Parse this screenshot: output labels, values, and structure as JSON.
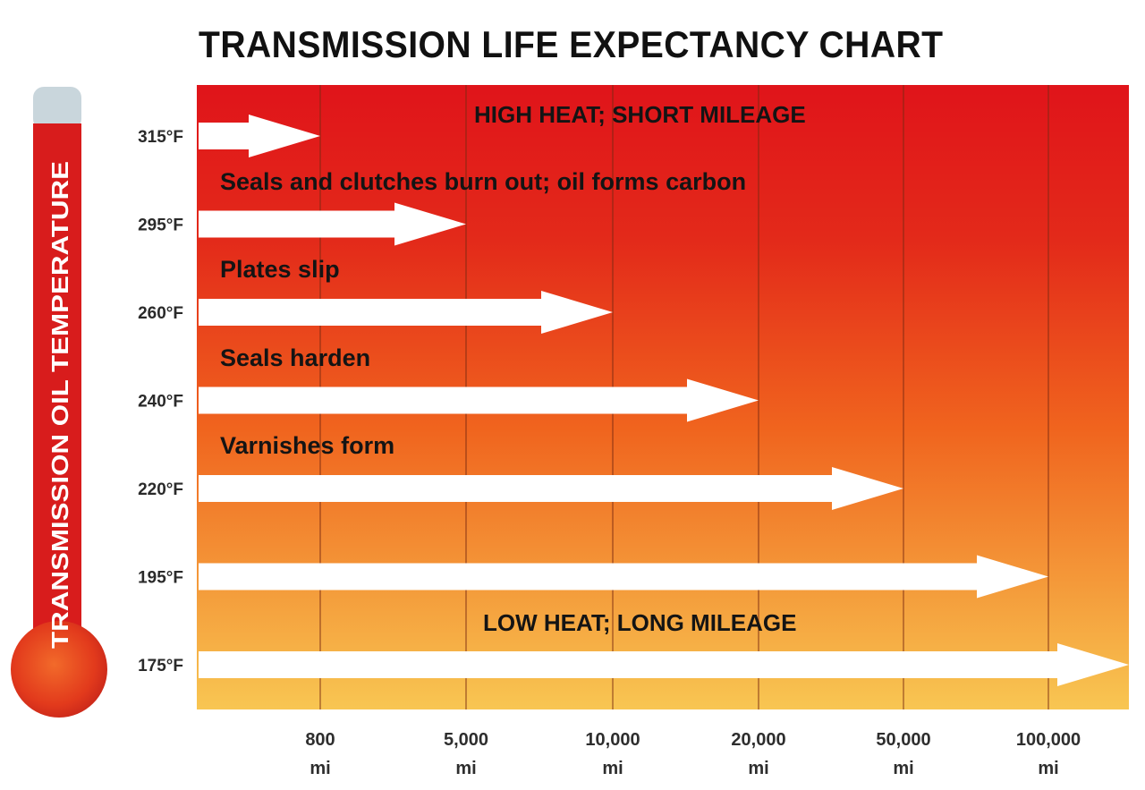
{
  "chart_data": {
    "type": "bar",
    "orientation": "horizontal",
    "title": "TRANSMISSION LIFE EXPECTANCY CHART",
    "ylabel": "TRANSMISSION OIL TEMPERATURE",
    "xlabel": "",
    "categories": [
      "315°F",
      "295°F",
      "260°F",
      "240°F",
      "220°F",
      "195°F",
      "175°F"
    ],
    "values_mi": [
      800,
      5000,
      10000,
      20000,
      50000,
      100000,
      100001
    ],
    "x_ticks": [
      {
        "value": "800",
        "unit": "mi"
      },
      {
        "value": "5,000",
        "unit": "mi"
      },
      {
        "value": "10,000",
        "unit": "mi"
      },
      {
        "value": "20,000",
        "unit": "mi"
      },
      {
        "value": "50,000",
        "unit": "mi"
      },
      {
        "value": "100,000",
        "unit": "mi"
      }
    ],
    "x_scale": "categorical-step",
    "grid": true,
    "annotations": {
      "top": "HIGH HEAT; SHORT MILEAGE",
      "bottom": "LOW HEAT; LONG MILEAGE",
      "row_notes": [
        "Seals and clutches burn out; oil forms carbon",
        "Plates slip",
        "Seals harden",
        "Varnishes form"
      ]
    },
    "colors": {
      "gradient_top": "#e0141a",
      "gradient_mid": "#f0641e",
      "gradient_bottom": "#f8c652",
      "arrow": "#ffffff",
      "grid": "#7a2a10",
      "thermometer_red": "#d81c1c",
      "thermometer_cap": "#c9d6dc"
    }
  }
}
